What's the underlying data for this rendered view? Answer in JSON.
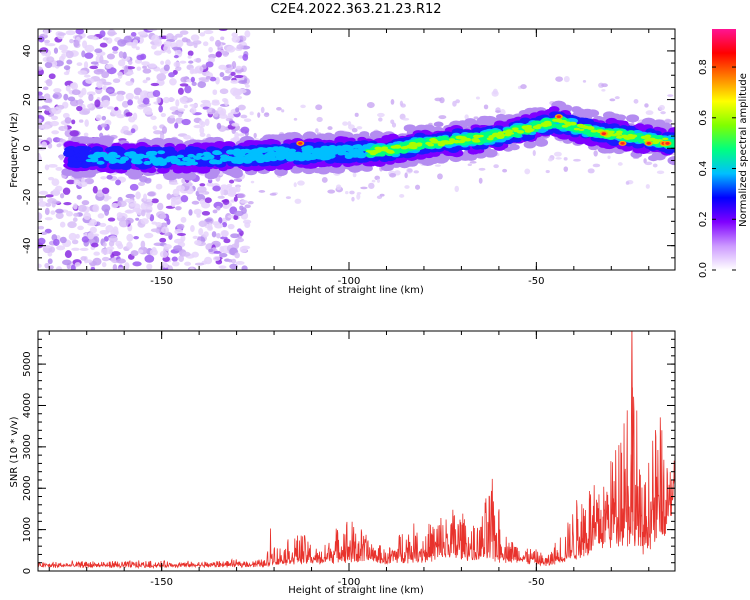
{
  "title": "C2E4.2022.363.21.23.R12",
  "chart_data": [
    {
      "type": "heatmap",
      "xlabel": "Height of straight line (km)",
      "ylabel": "Frequency (Hz)",
      "xlim": [
        -183,
        -13
      ],
      "ylim": [
        -50,
        49
      ],
      "xticks": [
        -150,
        -100,
        -50
      ],
      "yticks": [
        -40,
        -20,
        0,
        20,
        40
      ],
      "xtick_labels": [
        "-150",
        "-100",
        "-50"
      ],
      "ytick_labels": [
        "-40",
        "-20",
        "0",
        "20",
        "40"
      ],
      "colorbar": {
        "label": "Normalized spectral amplitude",
        "range": [
          0,
          0.95
        ],
        "ticks": [
          0.0,
          0.2,
          0.4,
          0.6,
          0.8
        ],
        "tick_labels": [
          "0.0",
          "0.2",
          "0.4",
          "0.6",
          "0.8"
        ],
        "colormap": [
          "#ffffff",
          "#cc99ff",
          "#7f00ff",
          "#0000ff",
          "#00bfff",
          "#00ff80",
          "#80ff00",
          "#ffff00",
          "#ff8000",
          "#ff0000",
          "#ff1493"
        ]
      },
      "band_center": [
        {
          "x": -183,
          "y": -3
        },
        {
          "x": -160,
          "y": -4
        },
        {
          "x": -140,
          "y": -4
        },
        {
          "x": -127,
          "y": -3
        },
        {
          "x": -110,
          "y": -2
        },
        {
          "x": -90,
          "y": -1
        },
        {
          "x": -80,
          "y": 2
        },
        {
          "x": -65,
          "y": 4
        },
        {
          "x": -55,
          "y": 7
        },
        {
          "x": -45,
          "y": 11
        },
        {
          "x": -35,
          "y": 7
        },
        {
          "x": -25,
          "y": 5
        },
        {
          "x": -13,
          "y": 2
        }
      ],
      "noise_region_x": [
        -183,
        -127
      ]
    },
    {
      "type": "line",
      "xlabel": "Height of straight line (km)",
      "ylabel": "SNR (10 * v/v)",
      "xlim": [
        -183,
        -13
      ],
      "ylim": [
        0,
        5800
      ],
      "xticks": [
        -150,
        -100,
        -50
      ],
      "yticks": [
        0,
        1000,
        2000,
        3000,
        4000,
        5000
      ],
      "xtick_labels": [
        "-150",
        "-100",
        "-50"
      ],
      "ytick_labels": [
        "0",
        "1000",
        "2000",
        "3000",
        "4000",
        "5000"
      ],
      "color": "#e8322c",
      "envelope": [
        {
          "x": -183,
          "base": 120,
          "peak": 230
        },
        {
          "x": -160,
          "base": 120,
          "peak": 260
        },
        {
          "x": -140,
          "base": 130,
          "peak": 240
        },
        {
          "x": -122,
          "base": 150,
          "peak": 300
        },
        {
          "x": -121,
          "base": 200,
          "peak": 1100
        },
        {
          "x": -119,
          "base": 200,
          "peak": 600
        },
        {
          "x": -113,
          "base": 250,
          "peak": 1000
        },
        {
          "x": -108,
          "base": 250,
          "peak": 500
        },
        {
          "x": -101,
          "base": 300,
          "peak": 1400
        },
        {
          "x": -96,
          "base": 300,
          "peak": 1000
        },
        {
          "x": -90,
          "base": 250,
          "peak": 500
        },
        {
          "x": -85,
          "base": 300,
          "peak": 1200
        },
        {
          "x": -80,
          "base": 300,
          "peak": 1100
        },
        {
          "x": -75,
          "base": 350,
          "peak": 1500
        },
        {
          "x": -71,
          "base": 400,
          "peak": 1650
        },
        {
          "x": -66,
          "base": 350,
          "peak": 1000
        },
        {
          "x": -62,
          "base": 350,
          "peak": 2300
        },
        {
          "x": -58,
          "base": 300,
          "peak": 900
        },
        {
          "x": -52,
          "base": 250,
          "peak": 600
        },
        {
          "x": -47,
          "base": 150,
          "peak": 400
        },
        {
          "x": -42,
          "base": 300,
          "peak": 1200
        },
        {
          "x": -37,
          "base": 500,
          "peak": 2400
        },
        {
          "x": -33,
          "base": 800,
          "peak": 2200
        },
        {
          "x": -29,
          "base": 900,
          "peak": 3300
        },
        {
          "x": -26,
          "base": 1000,
          "peak": 5200
        },
        {
          "x": -24,
          "base": 800,
          "peak": 5800
        },
        {
          "x": -22,
          "base": 600,
          "peak": 2000
        },
        {
          "x": -19,
          "base": 800,
          "peak": 3500
        },
        {
          "x": -17,
          "base": 1000,
          "peak": 3900
        },
        {
          "x": -15,
          "base": 1400,
          "peak": 2600
        },
        {
          "x": -13,
          "base": 2200,
          "peak": 3900
        }
      ]
    }
  ]
}
